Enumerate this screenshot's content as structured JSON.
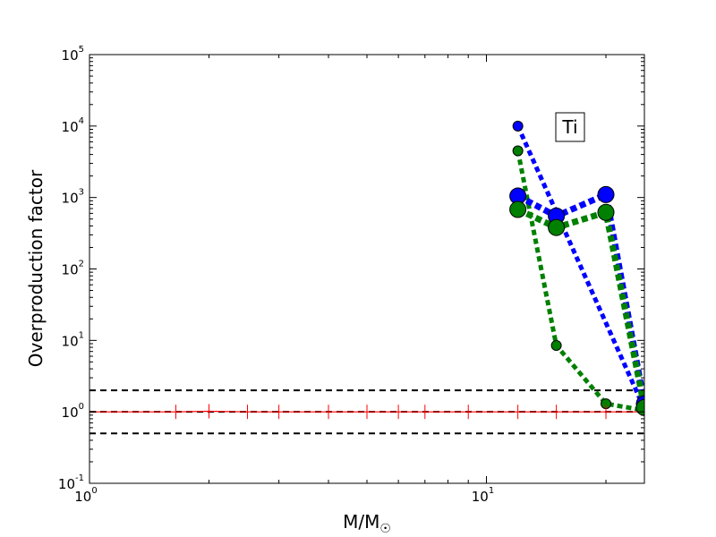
{
  "chart_data": {
    "type": "scatter",
    "xscale": "log",
    "yscale": "log",
    "xlim": [
      1,
      25
    ],
    "ylim": [
      0.1,
      100000
    ],
    "xlabel_main": "M/M",
    "xlabel_sub": "☉",
    "ylabel": "Overproduction factor",
    "x_ticks": [
      {
        "base": "10",
        "exp": "0",
        "value": 1
      },
      {
        "base": "10",
        "exp": "1",
        "value": 10
      }
    ],
    "y_ticks": [
      {
        "base": "10",
        "exp": "-1",
        "value": 0.1
      },
      {
        "base": "10",
        "exp": "0",
        "value": 1
      },
      {
        "base": "10",
        "exp": "1",
        "value": 10
      },
      {
        "base": "10",
        "exp": "2",
        "value": 100
      },
      {
        "base": "10",
        "exp": "3",
        "value": 1000
      },
      {
        "base": "10",
        "exp": "4",
        "value": 10000
      },
      {
        "base": "10",
        "exp": "5",
        "value": 100000
      }
    ],
    "reference_lines": [
      0.5,
      1,
      2
    ],
    "annotation": "Ti",
    "series": [
      {
        "color": "#0000ff",
        "marker_size": "small",
        "linestyle": "dotted",
        "x": [
          12,
          25
        ],
        "y": [
          10000,
          1.1
        ]
      },
      {
        "color": "#008000",
        "marker_size": "small",
        "linestyle": "dotted",
        "x": [
          12,
          15,
          20,
          25
        ],
        "y": [
          4500,
          8.5,
          1.3,
          1.05
        ]
      },
      {
        "color": "#0000ff",
        "marker_size": "large",
        "linestyle": "dotted",
        "x": [
          12,
          15,
          20,
          25
        ],
        "y": [
          1050,
          550,
          1100,
          1.3
        ]
      },
      {
        "color": "#008000",
        "marker_size": "large",
        "linestyle": "dotted",
        "x": [
          12,
          15,
          20,
          25
        ],
        "y": [
          680,
          380,
          620,
          1.15
        ]
      },
      {
        "color": "#ff0000",
        "marker_size": "none",
        "linestyle": "solid",
        "marker": "vertical-tick",
        "x": [
          1,
          1.65,
          2,
          2.5,
          3,
          4,
          5,
          6,
          7,
          9,
          12,
          15,
          20,
          25
        ],
        "y": [
          1,
          1,
          1.02,
          1,
          1,
          1,
          1,
          1,
          1,
          1,
          1,
          1,
          1,
          1
        ]
      }
    ]
  }
}
